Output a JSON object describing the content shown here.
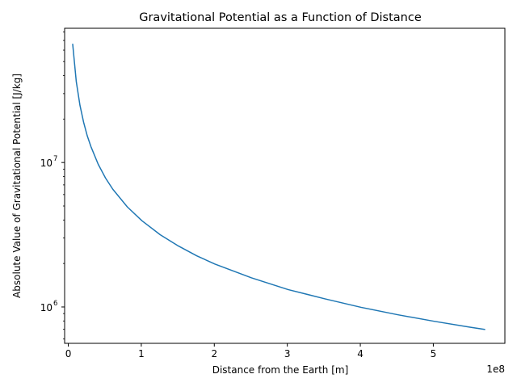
{
  "chart_data": {
    "type": "line",
    "title": "Gravitational Potential as a Function of Distance",
    "xlabel": "Distance from the Earth [m]",
    "ylabel": "Absolute Value of Gravitational Potential [J/kg]",
    "x_offset_label": "1e8",
    "xscale": "linear",
    "yscale": "log",
    "xlim": [
      -5000000,
      598000000
    ],
    "ylim": [
      560000,
      85000000
    ],
    "grid": false,
    "x_ticks": [
      {
        "value": 0,
        "label": "0"
      },
      {
        "value": 100000000,
        "label": "1"
      },
      {
        "value": 200000000,
        "label": "2"
      },
      {
        "value": 300000000,
        "label": "3"
      },
      {
        "value": 400000000,
        "label": "4"
      },
      {
        "value": 500000000,
        "label": "5"
      }
    ],
    "y_ticks": [
      {
        "value": 1000000,
        "label": "10",
        "exponent": "6"
      },
      {
        "value": 10000000,
        "label": "10",
        "exponent": "7"
      }
    ],
    "y_minor_ticks": [
      600000,
      700000,
      800000,
      900000,
      2000000,
      3000000,
      4000000,
      5000000,
      6000000,
      7000000,
      8000000,
      9000000,
      20000000,
      30000000,
      40000000,
      50000000,
      60000000,
      70000000,
      80000000
    ],
    "series": [
      {
        "color": "#1f77b4",
        "x": [
          6000000,
          11000000,
          16000000,
          21000000,
          26000000,
          31000000,
          41000000,
          51000000,
          61000000,
          81000000,
          101000000,
          126000000,
          151000000,
          176000000,
          201000000,
          251000000,
          301000000,
          351000000,
          401000000,
          451000000,
          501000000,
          551000000,
          571000000
        ],
        "y": [
          66400000,
          36200000,
          24900000,
          19000000,
          15300000,
          12900000,
          9720000,
          7810000,
          6530000,
          4920000,
          3950000,
          3160000,
          2640000,
          2260000,
          1980000,
          1590000,
          1320000,
          1140000,
          994000,
          884000,
          796000,
          723000,
          698000
        ]
      }
    ]
  }
}
